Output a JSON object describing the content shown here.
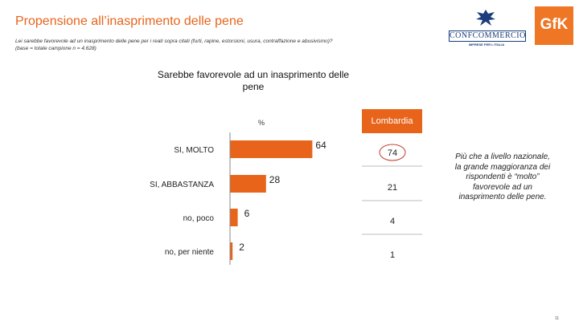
{
  "slide": {
    "title": "Propensione all’inasprimento delle pene",
    "question": "Lei sarebbe favorevole ad un inasprimento delle pene per i reati sopra citati (furti, rapine, estorsioni, usura, contraffazione e abusivismo)?",
    "base": "(base = totale campione n = 4.628)",
    "page_number": "11",
    "note": "Più che a livello nazionale, la grande maggioranza dei rispondenti è “molto” favorevole ad un inasprimento delle pene."
  },
  "logos": {
    "confcommercio_name": "CONFCOMMERCIO",
    "confcommercio_tagline": "IMPRESE PER L'ITALIA",
    "gfk": "GfK"
  },
  "colors": {
    "accent": "#e8641b",
    "confcommercio_blue": "#1a3d7c",
    "gfk_orange": "#ee7624"
  },
  "chart_data": {
    "type": "bar",
    "orientation": "horizontal",
    "title": "Sarebbe favorevole ad un inasprimento delle pene",
    "unit_label": "%",
    "categories": [
      "SI, MOLTO",
      "SI, ABBASTANZA",
      "no, poco",
      "no, per niente"
    ],
    "values": [
      64,
      28,
      6,
      2
    ],
    "comparison": {
      "name": "Lombardia",
      "values": [
        74,
        21,
        4,
        1
      ],
      "highlighted_index": 0
    },
    "xlim": [
      0,
      100
    ],
    "grid": false,
    "legend": "none"
  }
}
